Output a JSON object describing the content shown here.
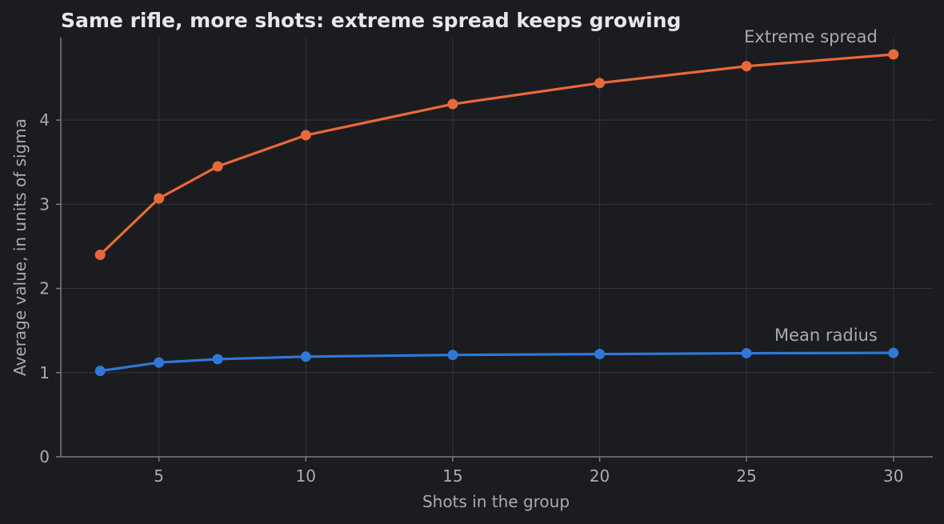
{
  "chart_data": {
    "type": "line",
    "title": "Same rifle, more shots: extreme spread keeps growing",
    "xlabel": "Shots in the group",
    "ylabel": "Average value, in units of sigma",
    "xlim": [
      1.66,
      31.34
    ],
    "ylim": [
      0,
      4.98
    ],
    "x_ticks": [
      5,
      10,
      15,
      20,
      25,
      30
    ],
    "y_ticks": [
      0,
      1,
      2,
      3,
      4
    ],
    "grid": true,
    "legend": "none",
    "x": [
      3,
      5,
      7,
      10,
      15,
      20,
      25,
      30
    ],
    "series": [
      {
        "name": "Extreme spread",
        "color": "#e8693a",
        "values": [
          2.4,
          3.07,
          3.45,
          3.82,
          4.19,
          4.44,
          4.64,
          4.78
        ]
      },
      {
        "name": "Mean radius",
        "color": "#2f78d8",
        "values": [
          1.02,
          1.12,
          1.16,
          1.19,
          1.21,
          1.22,
          1.23,
          1.235
        ]
      }
    ]
  }
}
